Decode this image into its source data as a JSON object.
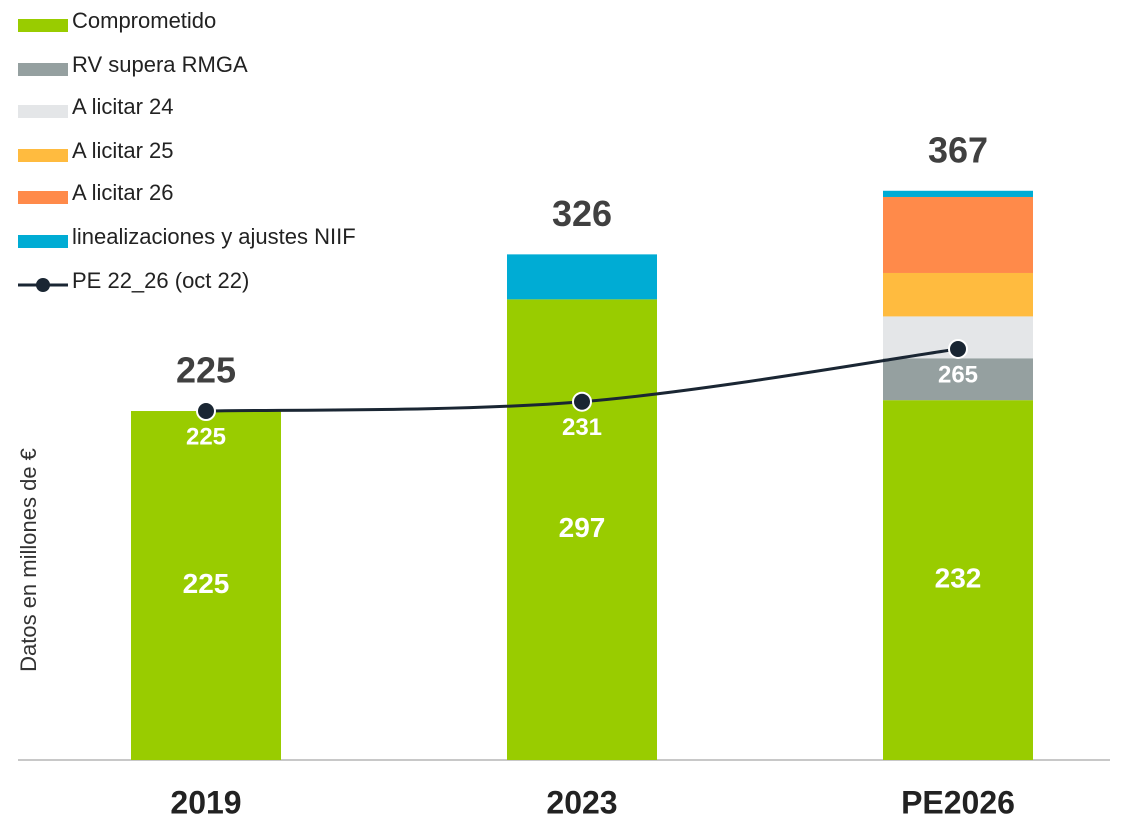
{
  "chart_data": {
    "type": "bar",
    "stacked": true,
    "ylabel": "Datos en millones de €",
    "categories": [
      "2019",
      "2023",
      "PE2026"
    ],
    "ylim": [
      0,
      490
    ],
    "series": [
      {
        "name": "Comprometido",
        "color": "#99cc00",
        "values": [
          225,
          297,
          232
        ]
      },
      {
        "name": "RV supera RMGA",
        "color": "#95a0a0",
        "values": [
          null,
          null,
          27
        ]
      },
      {
        "name": "A licitar 24",
        "color": "#e4e6e8",
        "values": [
          null,
          null,
          27
        ]
      },
      {
        "name": "A licitar 25",
        "color": "#ffbb3f",
        "values": [
          null,
          null,
          28
        ]
      },
      {
        "name": "A licitar 26",
        "color": "#ff8a4a",
        "values": [
          null,
          null,
          49
        ]
      },
      {
        "name": "linealizaciones y ajustes NIIF",
        "color": "#00acd4",
        "values": [
          null,
          29,
          4
        ]
      },
      {
        "name": "PE 22_26 (oct 22)",
        "type": "line",
        "color": "#1a2633",
        "values": [
          225,
          231,
          265
        ]
      }
    ],
    "totals": [
      225,
      326,
      367
    ],
    "segment_labels_series": 0,
    "legend": "upper left"
  }
}
